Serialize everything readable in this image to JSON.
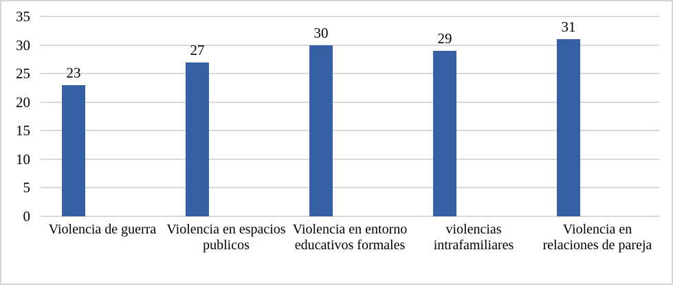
{
  "chart_data": {
    "type": "bar",
    "title": "",
    "xlabel": "",
    "ylabel": "",
    "categories": [
      "Violencia de guerra",
      "Violencia en espacios publicos",
      "Violencia en entorno educativos formales",
      "violencias intrafamiliares",
      "Violencia en relaciones de pareja"
    ],
    "values": [
      23,
      27,
      30,
      29,
      31
    ],
    "ylim": [
      0,
      35
    ],
    "yticks": [
      0,
      5,
      10,
      15,
      20,
      25,
      30,
      35
    ],
    "grid": true,
    "legend": false,
    "data_labels_shown": true
  },
  "colors": {
    "bar": "#3560A4",
    "gridline": "#d9d9d9",
    "axis_line": "#d9d9d9",
    "border": "#d6d6d6",
    "text": "#000000",
    "background": "#ffffff"
  }
}
